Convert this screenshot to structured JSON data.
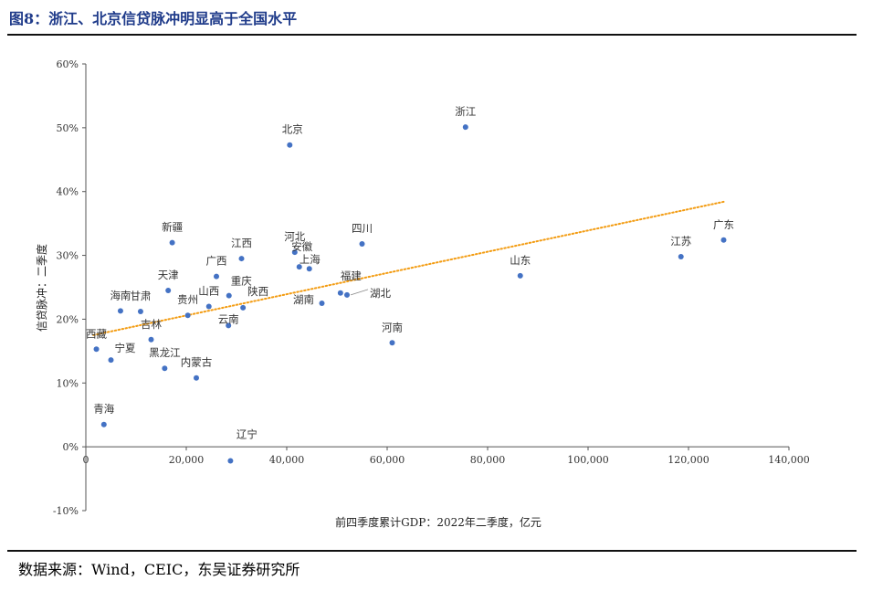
{
  "title": "图8：浙江、北京信贷脉冲明显高于全国水平",
  "source": "数据来源：Wind，CEIC，东吴证券研究所",
  "colors": {
    "title": "#1f3b8a",
    "point": "#4472c4",
    "trendline": "#f39c12"
  },
  "chart_data": {
    "type": "scatter",
    "xlabel": "前四季度累计GDP：2022年二季度，亿元",
    "ylabel": "信贷脉冲：二季度",
    "xlim": [
      0,
      140000
    ],
    "ylim": [
      -0.1,
      0.6
    ],
    "x_ticks": [
      {
        "value": 0,
        "label": "0"
      },
      {
        "value": 20000,
        "label": "20,000"
      },
      {
        "value": 40000,
        "label": "40,000"
      },
      {
        "value": 60000,
        "label": "60,000"
      },
      {
        "value": 80000,
        "label": "80,000"
      },
      {
        "value": 100000,
        "label": "100,000"
      },
      {
        "value": 120000,
        "label": "120,000"
      },
      {
        "value": 140000,
        "label": "140,000"
      }
    ],
    "y_ticks": [
      {
        "value": -0.1,
        "label": "-10%"
      },
      {
        "value": 0,
        "label": "0%"
      },
      {
        "value": 0.1,
        "label": "10%"
      },
      {
        "value": 0.2,
        "label": "20%"
      },
      {
        "value": 0.3,
        "label": "30%"
      },
      {
        "value": 0.4,
        "label": "40%"
      },
      {
        "value": 0.5,
        "label": "50%"
      },
      {
        "value": 0.6,
        "label": "60%"
      }
    ],
    "grid": false,
    "trendline": {
      "style": "dotted",
      "x": [
        1500,
        127000
      ],
      "y": [
        0.175,
        0.384
      ]
    },
    "points": [
      {
        "label": "浙江",
        "x": 75600,
        "y": 0.501
      },
      {
        "label": "北京",
        "x": 40600,
        "y": 0.473
      },
      {
        "label": "新疆",
        "x": 17200,
        "y": 0.32
      },
      {
        "label": "江西",
        "x": 31000,
        "y": 0.295
      },
      {
        "label": "河北",
        "x": 41600,
        "y": 0.305
      },
      {
        "label": "四川",
        "x": 55000,
        "y": 0.318
      },
      {
        "label": "上海",
        "x": 42500,
        "y": 0.282
      },
      {
        "label": "广西",
        "x": 26000,
        "y": 0.267
      },
      {
        "label": "天津",
        "x": 16400,
        "y": 0.245
      },
      {
        "label": "重庆",
        "x": 28500,
        "y": 0.237
      },
      {
        "label": "安徽",
        "x": 44500,
        "y": 0.279
      },
      {
        "label": "福建",
        "x": 50700,
        "y": 0.241
      },
      {
        "label": "湖北",
        "x": 52000,
        "y": 0.238
      },
      {
        "label": "陕西",
        "x": 31300,
        "y": 0.218
      },
      {
        "label": "山西",
        "x": 24500,
        "y": 0.22
      },
      {
        "label": "湖南",
        "x": 47000,
        "y": 0.225
      },
      {
        "label": "海南",
        "x": 6900,
        "y": 0.213
      },
      {
        "label": "甘肃",
        "x": 10900,
        "y": 0.212
      },
      {
        "label": "贵州",
        "x": 20300,
        "y": 0.206
      },
      {
        "label": "云南",
        "x": 28400,
        "y": 0.19
      },
      {
        "label": "吉林",
        "x": 13000,
        "y": 0.168
      },
      {
        "label": "西藏",
        "x": 2100,
        "y": 0.153
      },
      {
        "label": "宁夏",
        "x": 5000,
        "y": 0.136
      },
      {
        "label": "黑龙江",
        "x": 15700,
        "y": 0.123
      },
      {
        "label": "内蒙古",
        "x": 22000,
        "y": 0.108
      },
      {
        "label": "青海",
        "x": 3600,
        "y": 0.035
      },
      {
        "label": "辽宁",
        "x": 28800,
        "y": -0.022
      },
      {
        "label": "山东",
        "x": 86500,
        "y": 0.268
      },
      {
        "label": "河南",
        "x": 61000,
        "y": 0.163
      },
      {
        "label": "江苏",
        "x": 118500,
        "y": 0.298
      },
      {
        "label": "广东",
        "x": 127000,
        "y": 0.324
      }
    ]
  }
}
